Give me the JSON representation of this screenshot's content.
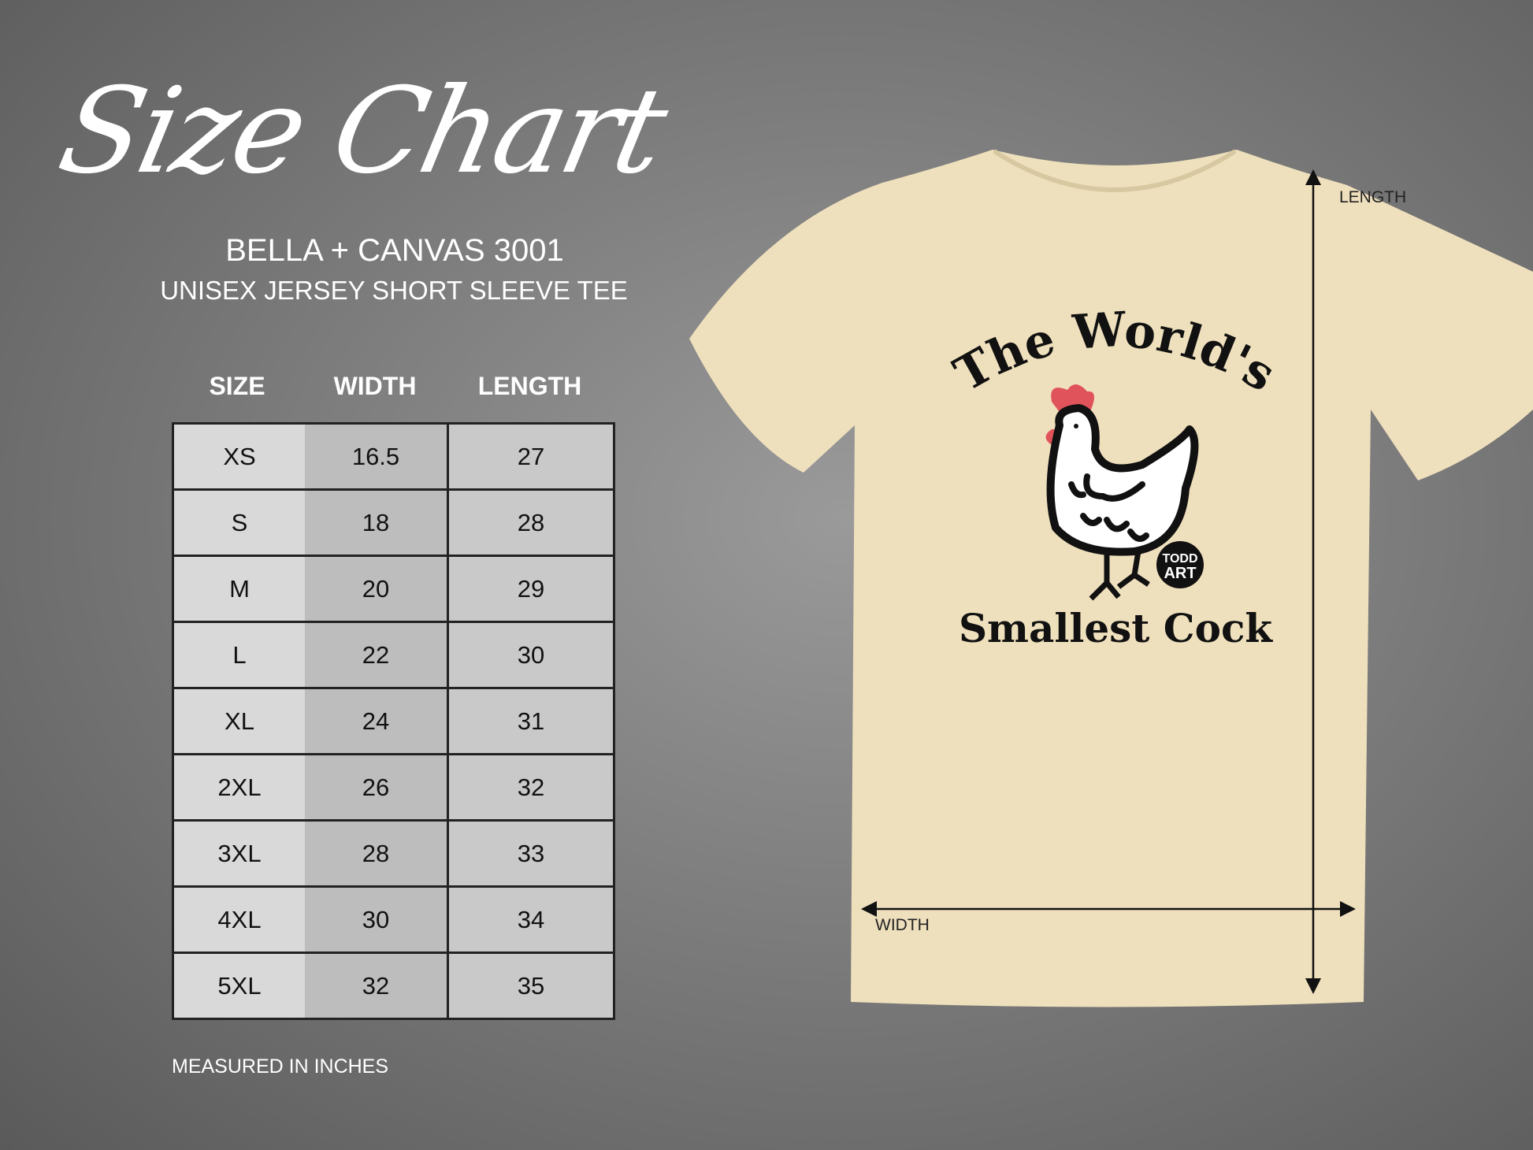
{
  "title": "Size Chart",
  "brand": "BELLA + CANVAS 3001",
  "product": "UNISEX JERSEY SHORT SLEEVE TEE",
  "table": {
    "headers": [
      "SIZE",
      "WIDTH",
      "LENGTH"
    ],
    "rows": [
      [
        "XS",
        "16.5",
        "27"
      ],
      [
        "S",
        "18",
        "28"
      ],
      [
        "M",
        "20",
        "29"
      ],
      [
        "L",
        "22",
        "30"
      ],
      [
        "XL",
        "24",
        "31"
      ],
      [
        "2XL",
        "26",
        "32"
      ],
      [
        "3XL",
        "28",
        "33"
      ],
      [
        "4XL",
        "30",
        "34"
      ],
      [
        "5XL",
        "32",
        "35"
      ]
    ]
  },
  "footer": "MEASURED IN INCHES",
  "shirt": {
    "color": "#efe0bd",
    "design_top": "The World's",
    "design_bottom": "Smallest Cock",
    "logo": "TODD ART",
    "length_label": "LENGTH",
    "width_label": "WIDTH"
  }
}
